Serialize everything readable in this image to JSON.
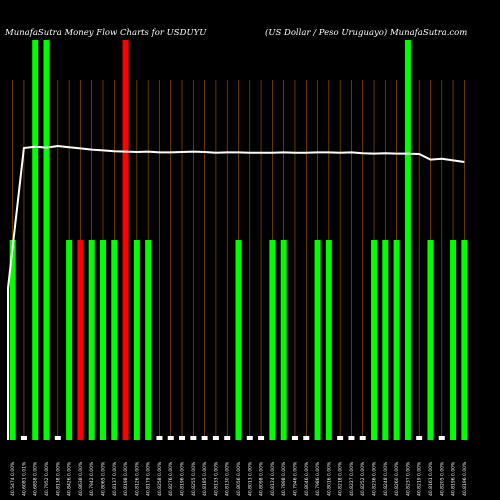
{
  "chart_data": {
    "type": "bar",
    "title_left": "MunafaSutra  Money Flow  Charts for USDUYU",
    "title_right": "(US Dollar / Peso   Uruguayo) MunafaSutra.com",
    "ylim": [
      0,
      100
    ],
    "colors": {
      "up": "#00ff00",
      "down": "#ff0000",
      "neutral": "#ffffff",
      "grid": "#b05a00",
      "line": "#ffffff"
    },
    "categories": [
      "40.5474 0.00%",
      "40.6081 0.01%",
      "40.6858 0.00%",
      "40.7952 0.00%",
      "40.8138 0.00%",
      "40.8426 0.00%",
      "40.8638 0.00%",
      "40.7942 0.00%",
      "40.8065 0.00%",
      "40.8137 0.00%",
      "40.8198 0.00%",
      "40.8126 0.00%",
      "40.8179 0.00%",
      "40.8258 0.00%",
      "40.8276 0.00%",
      "40.8196 0.00%",
      "40.8255 0.00%",
      "40.8185 0.00%",
      "40.8133 0.00%",
      "40.8130 0.00%",
      "40.8056 0.00%",
      "40.8013 0.00%",
      "40.8098 0.00%",
      "40.8124 0.00%",
      "40.7898 0.00%",
      "40.7946 0.00%",
      "40.8046 0.00%",
      "40.7986 0.00%",
      "40.8016 0.00%",
      "40.8218 0.00%",
      "40.8227 0.00%",
      "40.8252 0.00%",
      "40.8236 0.00%",
      "40.8248 0.00%",
      "40.8260 0.00%",
      "40.8237 0.00%",
      "40.8219 0.00%",
      "40.8161 0.00%",
      "40.8205 0.00%",
      "40.8196 0.00%",
      "40.8196 0.00%"
    ],
    "values": [
      50,
      1,
      100,
      100,
      1,
      50,
      50,
      50,
      50,
      50,
      100,
      50,
      50,
      1,
      1,
      1,
      1,
      1,
      1,
      1,
      50,
      1,
      1,
      50,
      50,
      1,
      1,
      50,
      50,
      1,
      1,
      1,
      50,
      50,
      50,
      100,
      1,
      50,
      1,
      50,
      50
    ],
    "bar_colors": [
      "up",
      "neutral",
      "up",
      "up",
      "neutral",
      "up",
      "down",
      "up",
      "up",
      "up",
      "down",
      "up",
      "up",
      "neutral",
      "neutral",
      "neutral",
      "neutral",
      "neutral",
      "neutral",
      "neutral",
      "up",
      "neutral",
      "neutral",
      "up",
      "up",
      "neutral",
      "neutral",
      "up",
      "up",
      "neutral",
      "neutral",
      "neutral",
      "up",
      "up",
      "up",
      "up",
      "neutral",
      "up",
      "neutral",
      "up",
      "up"
    ],
    "line_values": [
      38,
      73,
      73.3,
      73.1,
      73.5,
      73.2,
      72.9,
      72.6,
      72.4,
      72.2,
      72.1,
      72.0,
      72.1,
      71.9,
      71.9,
      72.0,
      72.1,
      72.0,
      71.8,
      71.9,
      71.9,
      71.8,
      71.8,
      71.8,
      71.9,
      71.8,
      71.8,
      71.9,
      71.9,
      71.8,
      71.9,
      71.7,
      71.6,
      71.7,
      71.6,
      71.6,
      71.5,
      70.1,
      70.3,
      69.9,
      69.5
    ]
  }
}
